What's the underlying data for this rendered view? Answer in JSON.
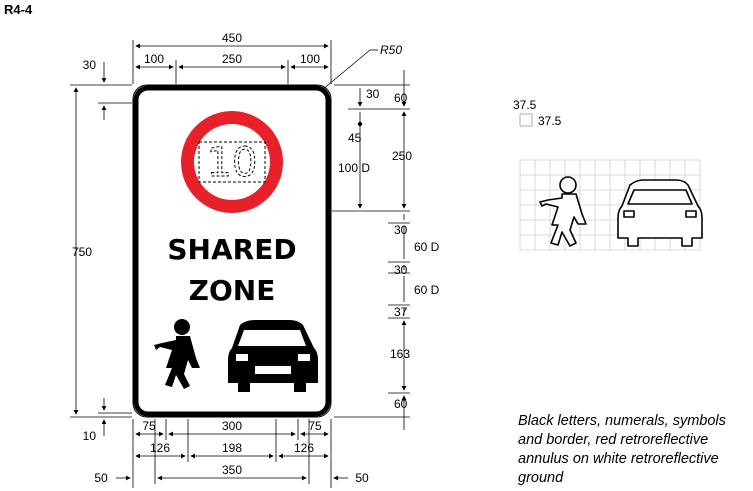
{
  "sign_code": "R4-4",
  "sign_text": {
    "speed": "10",
    "line1": "SHARED",
    "line2": "ZONE"
  },
  "dimensions": {
    "top_total": "450",
    "top_left": "100",
    "top_mid": "250",
    "top_right": "100",
    "radius": "R50",
    "left_top": "30",
    "left_total": "750",
    "left_bottom": "10",
    "bottom_row1_left": "75",
    "bottom_row1_mid": "300",
    "bottom_row1_right": "75",
    "bottom_row2_left": "126",
    "bottom_row2_mid": "198",
    "bottom_row2_right": "126",
    "bottom_row3_left": "50",
    "bottom_row3_mid": "350",
    "bottom_row3_right": "50",
    "right_inner_30": "30",
    "right_inner_45": "45",
    "right_inner_100d": "100 D",
    "right_60a": "60",
    "right_250": "250",
    "right_30a": "30",
    "right_60d_a": "60 D",
    "right_30b": "30",
    "right_60d_b": "60 D",
    "right_37": "37",
    "right_163": "163",
    "right_60b": "60"
  },
  "grid_legend": {
    "cell_w": "37.5",
    "cell_h": "37.5"
  },
  "note": "Black letters, numerals, symbols and border, red retroreflective annulus on white retroreflective ground",
  "colors": {
    "annulus": "#e8202a",
    "border": "#000000",
    "ground": "#ffffff",
    "grid": "#cfcfcf"
  }
}
